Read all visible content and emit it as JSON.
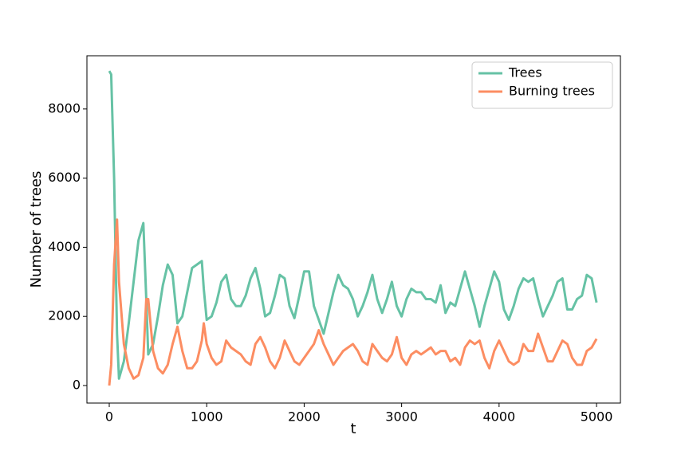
{
  "chart_data": {
    "type": "line",
    "xlabel": "t",
    "ylabel": "Number of trees",
    "x": [
      0,
      20,
      50,
      80,
      100,
      150,
      200,
      250,
      300,
      350,
      380,
      400,
      450,
      500,
      550,
      600,
      650,
      700,
      750,
      800,
      850,
      900,
      950,
      970,
      1000,
      1050,
      1100,
      1150,
      1200,
      1250,
      1300,
      1350,
      1400,
      1450,
      1500,
      1550,
      1600,
      1650,
      1700,
      1750,
      1800,
      1850,
      1900,
      1950,
      2000,
      2050,
      2100,
      2150,
      2200,
      2250,
      2300,
      2350,
      2400,
      2450,
      2500,
      2550,
      2600,
      2650,
      2700,
      2750,
      2800,
      2850,
      2900,
      2950,
      3000,
      3050,
      3100,
      3150,
      3200,
      3250,
      3300,
      3350,
      3400,
      3450,
      3500,
      3550,
      3600,
      3650,
      3700,
      3750,
      3800,
      3850,
      3900,
      3950,
      4000,
      4050,
      4100,
      4150,
      4200,
      4250,
      4300,
      4350,
      4400,
      4450,
      4500,
      4550,
      4600,
      4650,
      4700,
      4750,
      4800,
      4850,
      4900,
      4950,
      5000
    ],
    "series": [
      {
        "name": "Trees",
        "color": "#66c2a5",
        "values": [
          9100,
          9000,
          6000,
          1500,
          200,
          700,
          1800,
          3000,
          4200,
          4700,
          2500,
          900,
          1200,
          2000,
          2900,
          3500,
          3200,
          1800,
          2000,
          2700,
          3400,
          3500,
          3600,
          2800,
          1900,
          2000,
          2400,
          3000,
          3200,
          2500,
          2300,
          2300,
          2600,
          3100,
          3400,
          2800,
          2000,
          2100,
          2600,
          3200,
          3100,
          2300,
          1950,
          2600,
          3300,
          3300,
          2300,
          1900,
          1500,
          2100,
          2700,
          3200,
          2900,
          2800,
          2500,
          2000,
          2300,
          2700,
          3200,
          2500,
          2100,
          2500,
          3000,
          2300,
          2000,
          2500,
          2800,
          2700,
          2700,
          2500,
          2500,
          2400,
          2900,
          2100,
          2400,
          2300,
          2800,
          3300,
          2800,
          2300,
          1700,
          2300,
          2800,
          3300,
          3000,
          2200,
          1900,
          2300,
          2800,
          3100,
          3000,
          3100,
          2500,
          2000,
          2300,
          2600,
          3000,
          3100,
          2200,
          2200,
          2500,
          2600,
          3200,
          3100,
          2400
        ]
      },
      {
        "name": "Burning trees",
        "color": "#fc8d62",
        "values": [
          0,
          600,
          3500,
          4800,
          3000,
          1200,
          500,
          200,
          300,
          800,
          2500,
          2500,
          1000,
          500,
          350,
          600,
          1200,
          1700,
          1000,
          500,
          500,
          700,
          1300,
          1800,
          1200,
          800,
          600,
          700,
          1300,
          1100,
          1000,
          900,
          700,
          600,
          1200,
          1400,
          1100,
          700,
          500,
          800,
          1300,
          1000,
          700,
          600,
          800,
          1000,
          1200,
          1600,
          1200,
          900,
          600,
          800,
          1000,
          1100,
          1200,
          1000,
          700,
          600,
          1200,
          1000,
          800,
          700,
          900,
          1400,
          800,
          600,
          900,
          1000,
          900,
          1000,
          1100,
          900,
          1000,
          1000,
          700,
          800,
          600,
          1100,
          1300,
          1200,
          1300,
          800,
          500,
          1000,
          1300,
          1000,
          700,
          600,
          700,
          1200,
          1000,
          1000,
          1500,
          1100,
          700,
          700,
          1000,
          1300,
          1200,
          800,
          600,
          600,
          1000,
          1100,
          1350
        ]
      }
    ],
    "xlim": [
      -229,
      5245
    ],
    "ylim": [
      -507,
      9540
    ],
    "xticks": [
      0,
      1000,
      2000,
      3000,
      4000,
      5000
    ],
    "yticks": [
      0,
      2000,
      4000,
      6000,
      8000
    ],
    "legend": "upper right",
    "grid": false
  }
}
